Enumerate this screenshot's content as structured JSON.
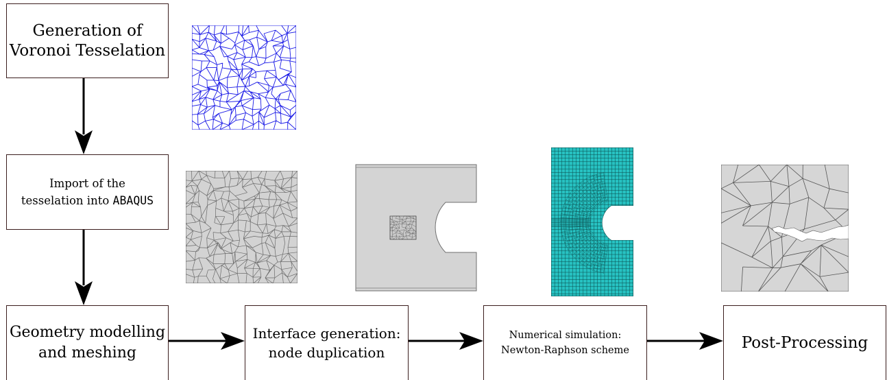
{
  "steps": {
    "voronoi": {
      "line1": "Generation of",
      "line2": "Voronoi Tesselation"
    },
    "import": {
      "line1": "Import of the",
      "line2_prefix": "tesselation into ",
      "line2_code": "ABAQUS"
    },
    "geometry": {
      "line1": "Geometry modelling",
      "line2": "and meshing"
    },
    "interface": {
      "line1": "Interface generation:",
      "line2": "node duplication"
    },
    "simulation": {
      "line1": "Numerical simulation:",
      "line2": "Newton-Raphson scheme"
    },
    "post": {
      "line1": "Post-Processing"
    }
  },
  "images": {
    "voronoi_tesselation": {
      "icon": "voronoi-tesselation-image",
      "color": "#1a1ae6"
    },
    "imported_tesselation": {
      "icon": "grey-grain-image",
      "color": "#d3d3d3"
    },
    "specimen_geometry": {
      "icon": "notched-specimen-image",
      "color": "#d4d4d4"
    },
    "fe_mesh": {
      "icon": "fe-mesh-image",
      "color": "#27c2c2"
    },
    "fractured_grains": {
      "icon": "fractured-grains-image",
      "color": "#d6d6d6"
    }
  }
}
